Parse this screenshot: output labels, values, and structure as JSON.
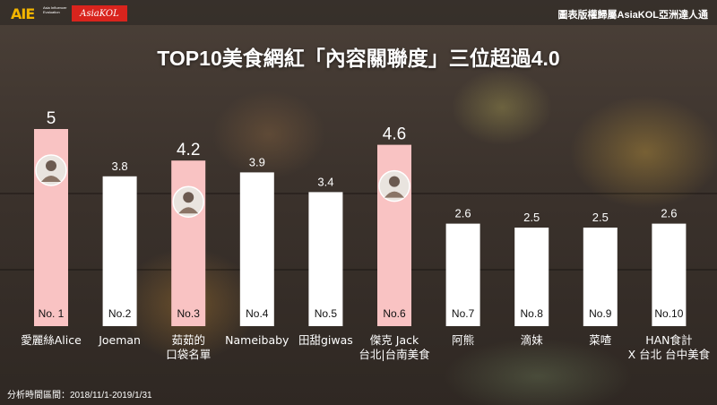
{
  "header": {
    "logo_aie": "AIE",
    "logo_aie_sub": "Asia Influencer Evaluation",
    "logo_asiakol": "AsiaKOL",
    "copyright": "圖表版權歸屬AsiaKOL亞洲達人通"
  },
  "title": "TOP10美食網紅「內容關聯度」三位超過4.0",
  "footnote": "分析時間區間：2018/11/1-2019/1/31",
  "colors": {
    "highlight_bar": "#f9c3c3",
    "normal_bar": "#ffffff",
    "text": "#ffffff"
  },
  "chart_data": {
    "type": "bar",
    "title": "TOP10美食網紅「內容關聯度」三位超過4.0",
    "categories": [
      [
        "愛麗絲Alice"
      ],
      [
        "Joeman"
      ],
      [
        "茹茹的",
        "口袋名單"
      ],
      [
        "Nameibaby"
      ],
      [
        "田甜giwas"
      ],
      [
        "傑克 Jack",
        "台北|台南美食"
      ],
      [
        "阿熊"
      ],
      [
        "滴妹"
      ],
      [
        "菜喳"
      ],
      [
        "HAN食計",
        "X 台北 台中美食"
      ]
    ],
    "ranks": [
      "No. 1",
      "No.2",
      "No.3",
      "No.4",
      "No.5",
      "No.6",
      "No.7",
      "No.8",
      "No.9",
      "No.10"
    ],
    "values": [
      5,
      3.8,
      4.2,
      3.9,
      3.4,
      4.6,
      2.6,
      2.5,
      2.5,
      2.6
    ],
    "value_labels": [
      "5",
      "3.8",
      "4.2",
      "3.9",
      "3.4",
      "4.6",
      "2.6",
      "2.5",
      "2.5",
      "2.6"
    ],
    "highlighted": [
      true,
      false,
      true,
      false,
      false,
      true,
      false,
      false,
      false,
      false
    ],
    "avatars": [
      true,
      false,
      true,
      false,
      false,
      true,
      false,
      false,
      false,
      false
    ],
    "ylim": [
      0,
      5
    ],
    "grid": false,
    "xlabel": "",
    "ylabel": ""
  }
}
